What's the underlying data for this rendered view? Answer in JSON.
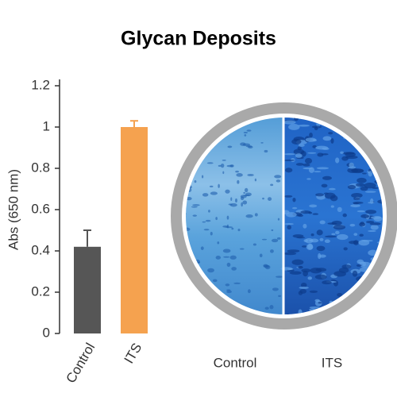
{
  "chart_data": {
    "type": "bar",
    "title": "Glycan Deposits",
    "y_label": "Abs (650 nm)",
    "categories": [
      "Control",
      "ITS"
    ],
    "values": [
      0.42,
      1.0
    ],
    "errors": [
      0.08,
      0.03
    ],
    "colors": [
      "#565656",
      "#f5a24f"
    ],
    "ylim": [
      0,
      1.2
    ],
    "yticks": [
      0,
      0.2,
      0.4,
      0.6,
      0.8,
      1,
      1.2
    ],
    "grid": false,
    "image_labels": [
      "Control",
      "ITS"
    ]
  }
}
